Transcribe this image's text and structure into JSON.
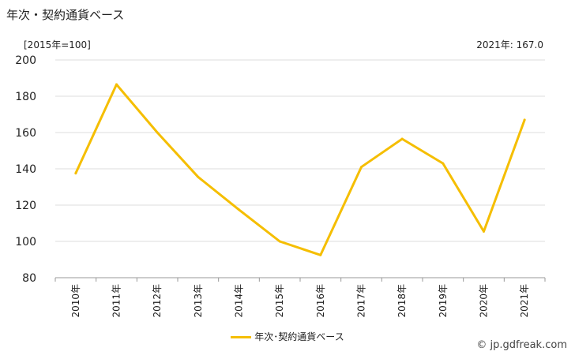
{
  "title": "年次・契約通貨ベース",
  "unit_label": "[2015年=100]",
  "latest_label": "2021年: 167.0",
  "copyright": "© jp.gdfreak.com",
  "colors": {
    "line": "#f5be00",
    "grid": "#dddddd",
    "axis": "#999999"
  },
  "chart_data": {
    "type": "line",
    "title": "年次・契約通貨ベース",
    "xlabel": "",
    "ylabel": "[2015年=100]",
    "categories": [
      "2010年",
      "2011年",
      "2012年",
      "2013年",
      "2014年",
      "2015年",
      "2016年",
      "2017年",
      "2018年",
      "2019年",
      "2020年",
      "2021年"
    ],
    "series": [
      {
        "name": "年次･契約通貨ベース",
        "values": [
          137.5,
          186.5,
          160.0,
          135.5,
          117.5,
          100.0,
          92.5,
          141.0,
          156.5,
          143.0,
          105.5,
          167.0
        ]
      }
    ],
    "ylim": [
      80,
      200
    ],
    "yticks": [
      "80",
      "100",
      "120",
      "140",
      "160",
      "180",
      "200"
    ],
    "grid": true,
    "legend": "bottom-center"
  }
}
